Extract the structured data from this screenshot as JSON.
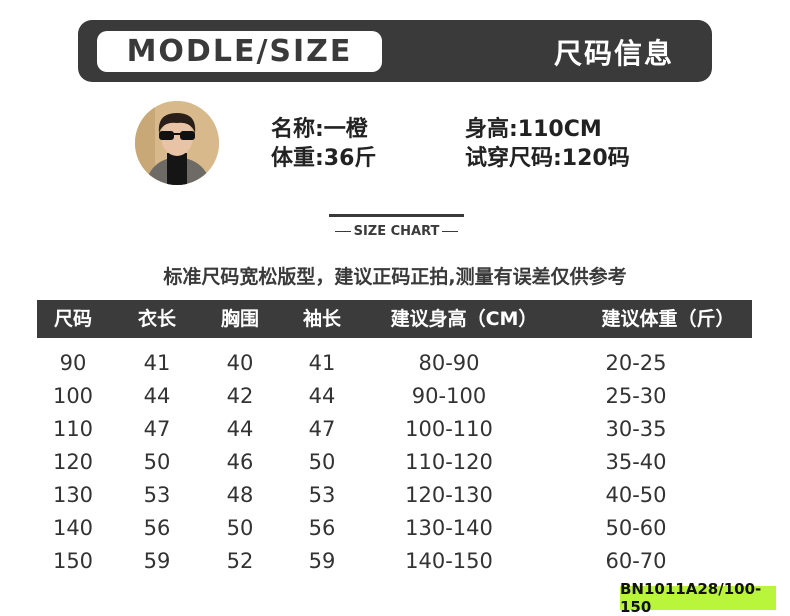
{
  "header": {
    "left": "MODLE/SIZE",
    "right": "尺码信息"
  },
  "model": {
    "name": "名称:一橙",
    "height": "身高:110CM",
    "weight": "体重:36斤",
    "size": "试穿尺码:120码"
  },
  "size_chart_label": "SIZE CHART",
  "note": "标准尺码宽松版型，建议正码正拍,测量有误差仅供参考",
  "table": {
    "headers": [
      "尺码",
      "衣长",
      "胸围",
      "袖长",
      "建议身高（CM）",
      "建议体重（斤）"
    ],
    "rows": [
      [
        "90",
        "41",
        "40",
        "41",
        "80-90",
        "20-25"
      ],
      [
        "100",
        "44",
        "42",
        "44",
        "90-100",
        "25-30"
      ],
      [
        "110",
        "47",
        "44",
        "47",
        "100-110",
        "30-35"
      ],
      [
        "120",
        "50",
        "46",
        "50",
        "110-120",
        "35-40"
      ],
      [
        "130",
        "53",
        "48",
        "53",
        "120-130",
        "40-50"
      ],
      [
        "140",
        "56",
        "50",
        "56",
        "130-140",
        "50-60"
      ],
      [
        "150",
        "59",
        "52",
        "59",
        "140-150",
        "60-70"
      ]
    ]
  },
  "tag": "BN1011A28/100-150"
}
